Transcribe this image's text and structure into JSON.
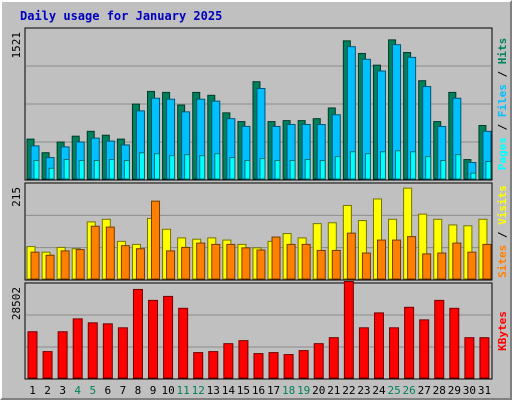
{
  "title": "Daily usage for January 2025",
  "colors": {
    "hits": "#00805c",
    "files": "#00c0ff",
    "pages": "#00ffff",
    "visits": "#ffff00",
    "sites": "#ff8000",
    "kbytes": "#ff0000",
    "weekend_day_label": "#00805c",
    "weekday_label": "#000000",
    "panel_bg": "#c0c0c0"
  },
  "chart_data": [
    {
      "type": "bar",
      "panel": "top",
      "ymax_label": "1521",
      "ylim": [
        0,
        1521
      ],
      "categories": [
        "1",
        "2",
        "3",
        "4",
        "5",
        "6",
        "7",
        "8",
        "9",
        "10",
        "11",
        "12",
        "13",
        "14",
        "15",
        "16",
        "17",
        "18",
        "19",
        "20",
        "21",
        "22",
        "23",
        "24",
        "25",
        "26",
        "27",
        "28",
        "29",
        "30",
        "31"
      ],
      "weekend_days": [
        "4",
        "5",
        "11",
        "12",
        "18",
        "19",
        "25",
        "26"
      ],
      "legend": [
        {
          "label": "Pages",
          "color_key": "pages"
        },
        {
          "label": "Files",
          "color_key": "files"
        },
        {
          "label": "Hits",
          "color_key": "hits"
        }
      ],
      "series": [
        {
          "name": "Hits",
          "color_key": "hits",
          "values": [
            410,
            270,
            380,
            440,
            490,
            450,
            410,
            770,
            900,
            890,
            760,
            890,
            860,
            680,
            590,
            1000,
            590,
            600,
            600,
            620,
            730,
            1420,
            1290,
            1170,
            1430,
            1300,
            1010,
            590,
            890,
            200,
            550
          ]
        },
        {
          "name": "Files",
          "color_key": "files",
          "values": [
            340,
            220,
            330,
            380,
            420,
            390,
            350,
            700,
            830,
            820,
            690,
            820,
            800,
            620,
            540,
            930,
            540,
            560,
            560,
            560,
            660,
            1360,
            1230,
            1110,
            1380,
            1250,
            950,
            540,
            830,
            170,
            490
          ]
        },
        {
          "name": "Pages",
          "color_key": "pages",
          "values": [
            190,
            110,
            200,
            190,
            190,
            200,
            190,
            270,
            260,
            240,
            250,
            240,
            260,
            220,
            190,
            210,
            190,
            190,
            200,
            190,
            230,
            280,
            260,
            280,
            290,
            280,
            230,
            190,
            250,
            60,
            180
          ]
        }
      ]
    },
    {
      "type": "bar",
      "panel": "middle",
      "ymax_label": "215",
      "ylim": [
        0,
        215
      ],
      "categories": [
        "1",
        "2",
        "3",
        "4",
        "5",
        "6",
        "7",
        "8",
        "9",
        "10",
        "11",
        "12",
        "13",
        "14",
        "15",
        "16",
        "17",
        "18",
        "19",
        "20",
        "21",
        "22",
        "23",
        "24",
        "25",
        "26",
        "27",
        "28",
        "29",
        "30",
        "31"
      ],
      "legend": [
        {
          "label": "Sites",
          "color_key": "sites"
        },
        {
          "label": "Visits",
          "color_key": "visits"
        }
      ],
      "series": [
        {
          "name": "Visits",
          "color_key": "visits",
          "values": [
            75,
            62,
            73,
            70,
            132,
            138,
            87,
            80,
            140,
            115,
            95,
            92,
            95,
            90,
            80,
            72,
            87,
            105,
            95,
            128,
            130,
            170,
            135,
            185,
            138,
            210,
            150,
            138,
            125,
            123,
            138
          ]
        },
        {
          "name": "Sites",
          "color_key": "sites",
          "values": [
            62,
            55,
            65,
            68,
            122,
            120,
            77,
            70,
            180,
            65,
            73,
            83,
            80,
            80,
            72,
            67,
            97,
            80,
            80,
            66,
            66,
            106,
            60,
            90,
            90,
            98,
            58,
            60,
            83,
            62,
            80
          ]
        }
      ]
    },
    {
      "type": "bar",
      "panel": "bottom",
      "ymax_label": "28502",
      "ylim": [
        0,
        28502
      ],
      "categories": [
        "1",
        "2",
        "3",
        "4",
        "5",
        "6",
        "7",
        "8",
        "9",
        "10",
        "11",
        "12",
        "13",
        "14",
        "15",
        "16",
        "17",
        "18",
        "19",
        "20",
        "21",
        "22",
        "23",
        "24",
        "25",
        "26",
        "27",
        "28",
        "29",
        "30",
        "31"
      ],
      "legend": [
        {
          "label": "KBytes",
          "color_key": "kbytes"
        }
      ],
      "series": [
        {
          "name": "KBytes",
          "color_key": "kbytes",
          "values": [
            14330,
            8180,
            14330,
            18320,
            17090,
            16780,
            15550,
            27430,
            24040,
            25280,
            21590,
            7870,
            8180,
            10640,
            11570,
            7560,
            7870,
            7260,
            8490,
            10640,
            12490,
            29890,
            15550,
            20170,
            15550,
            21900,
            18010,
            24040,
            21590,
            12490,
            12490
          ]
        }
      ]
    }
  ]
}
